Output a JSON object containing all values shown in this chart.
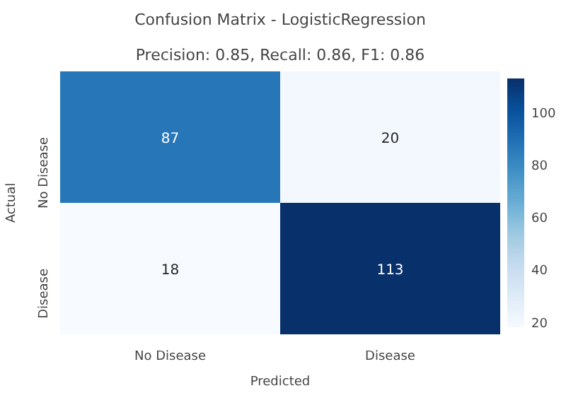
{
  "chart_data": {
    "type": "heatmap",
    "title": "Confusion Matrix - LogisticRegression",
    "subtitle": "Precision: 0.85, Recall: 0.86, F1: 0.86",
    "xlabel": "Predicted",
    "ylabel": "Actual",
    "categories": [
      "No Disease",
      "Disease"
    ],
    "y_categories": [
      "No Disease",
      "Disease"
    ],
    "cells": [
      [
        87,
        20
      ],
      [
        18,
        113
      ]
    ],
    "clim": [
      18,
      113
    ],
    "cticks": [
      20,
      40,
      60,
      80,
      100
    ],
    "data_labels": true
  }
}
